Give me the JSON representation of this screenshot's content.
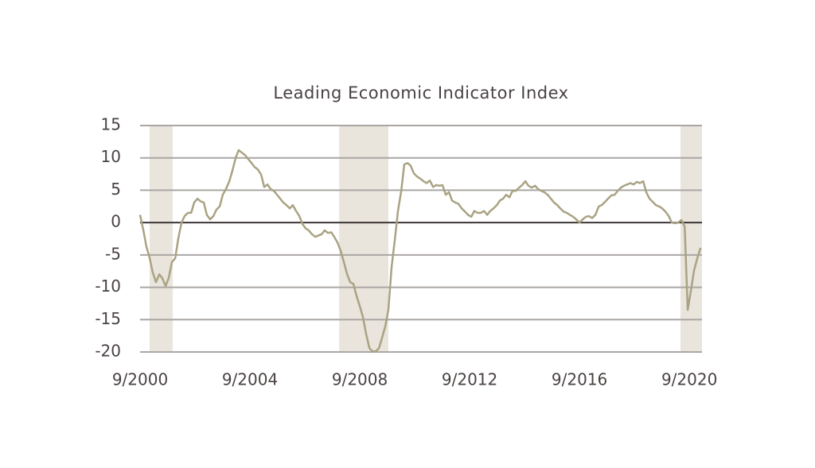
{
  "chart_data": {
    "type": "line",
    "title": "Leading Economic Indicator Index",
    "color": "#a9a383",
    "grid": true,
    "shade_color": "#e9e4dc",
    "shaded_periods": [
      {
        "start": 2001.02,
        "end": 2001.86
      },
      {
        "start": 2007.92,
        "end": 2009.71
      },
      {
        "start": 2020.35,
        "end": 2021.13
      }
    ],
    "xlim": [
      2000.67,
      2021.13
    ],
    "xticks": [
      {
        "value": 2000.67,
        "label": "9/2000"
      },
      {
        "value": 2004.67,
        "label": "9/2004"
      },
      {
        "value": 2008.67,
        "label": "9/2008"
      },
      {
        "value": 2012.67,
        "label": "9/2012"
      },
      {
        "value": 2016.67,
        "label": "9/2016"
      },
      {
        "value": 2020.67,
        "label": "9/2020"
      }
    ],
    "ylim": [
      -20,
      15
    ],
    "yticks": [
      15,
      10,
      5,
      0,
      -5,
      -10,
      -15,
      -20
    ],
    "x": [
      2000.67,
      2000.79,
      2000.9,
      2001.02,
      2001.13,
      2001.25,
      2001.37,
      2001.48,
      2001.6,
      2001.71,
      2001.83,
      2001.95,
      2002.06,
      2002.18,
      2002.29,
      2002.41,
      2002.53,
      2002.64,
      2002.76,
      2002.87,
      2002.99,
      2003.1,
      2003.22,
      2003.34,
      2003.45,
      2003.57,
      2003.68,
      2003.8,
      2003.92,
      2004.03,
      2004.15,
      2004.26,
      2004.38,
      2004.5,
      2004.61,
      2004.73,
      2004.84,
      2004.96,
      2005.08,
      2005.19,
      2005.31,
      2005.42,
      2005.54,
      2005.66,
      2005.77,
      2005.89,
      2006.0,
      2006.12,
      2006.23,
      2006.35,
      2006.47,
      2006.58,
      2006.7,
      2006.81,
      2006.93,
      2007.05,
      2007.16,
      2007.28,
      2007.39,
      2007.51,
      2007.63,
      2007.74,
      2007.86,
      2007.97,
      2008.09,
      2008.21,
      2008.32,
      2008.44,
      2008.55,
      2008.67,
      2008.79,
      2008.9,
      2009.02,
      2009.13,
      2009.25,
      2009.37,
      2009.48,
      2009.6,
      2009.71,
      2009.83,
      2009.95,
      2010.06,
      2010.18,
      2010.29,
      2010.41,
      2010.52,
      2010.64,
      2010.76,
      2010.87,
      2010.99,
      2011.1,
      2011.22,
      2011.34,
      2011.45,
      2011.57,
      2011.68,
      2011.8,
      2011.92,
      2012.03,
      2012.15,
      2012.26,
      2012.38,
      2012.5,
      2012.61,
      2012.73,
      2012.84,
      2012.96,
      2013.08,
      2013.19,
      2013.31,
      2013.42,
      2013.54,
      2013.66,
      2013.77,
      2013.89,
      2014.0,
      2014.12,
      2014.23,
      2014.35,
      2014.47,
      2014.58,
      2014.7,
      2014.81,
      2014.93,
      2015.05,
      2015.16,
      2015.28,
      2015.39,
      2015.51,
      2015.63,
      2015.74,
      2015.86,
      2015.97,
      2016.09,
      2016.21,
      2016.32,
      2016.44,
      2016.55,
      2016.67,
      2016.79,
      2016.9,
      2017.02,
      2017.13,
      2017.25,
      2017.37,
      2017.48,
      2017.6,
      2017.71,
      2017.83,
      2017.95,
      2018.06,
      2018.18,
      2018.29,
      2018.41,
      2018.52,
      2018.64,
      2018.76,
      2018.87,
      2018.99,
      2019.1,
      2019.22,
      2019.34,
      2019.45,
      2019.57,
      2019.68,
      2019.8,
      2019.92,
      2020.03,
      2020.15,
      2020.26,
      2020.38,
      2020.5,
      2020.61,
      2020.73,
      2020.84,
      2020.96,
      2021.08
    ],
    "values": [
      1.2,
      -1.2,
      -3.7,
      -5.5,
      -7.7,
      -9.2,
      -8,
      -8.6,
      -9.8,
      -8.6,
      -6.1,
      -5.5,
      -2.5,
      0,
      1,
      1.5,
      1.5,
      3.1,
      3.7,
      3.3,
      3.1,
      1.2,
      0.5,
      1,
      2,
      2.5,
      4.3,
      5.2,
      6.4,
      8,
      10,
      11.2,
      10.8,
      10.4,
      9.8,
      9.2,
      8.6,
      8.2,
      7.4,
      5.5,
      5.9,
      5.2,
      4.9,
      4.3,
      3.7,
      3.1,
      2.7,
      2.2,
      2.7,
      1.8,
      1,
      -0.2,
      -0.9,
      -1.2,
      -1.8,
      -2.2,
      -2,
      -1.8,
      -1.2,
      -1.6,
      -1.5,
      -2.2,
      -3.1,
      -4.3,
      -6.1,
      -8,
      -9.2,
      -9.5,
      -11.3,
      -12.9,
      -14.7,
      -17.2,
      -19.4,
      -19.9,
      -19.9,
      -19.4,
      -17.8,
      -16,
      -13.5,
      -6.8,
      -2.5,
      1.8,
      4.9,
      9,
      9.2,
      8.8,
      7.6,
      7.1,
      6.8,
      6.4,
      6.1,
      6.5,
      5.5,
      5.8,
      5.7,
      5.8,
      4.3,
      4.7,
      3.4,
      3.1,
      2.9,
      2.2,
      1.7,
      1.2,
      0.9,
      1.8,
      1.5,
      1.5,
      1.8,
      1.2,
      1.8,
      2.2,
      2.7,
      3.4,
      3.7,
      4.3,
      3.9,
      4.9,
      4.9,
      5.4,
      5.8,
      6.4,
      5.7,
      5.4,
      5.7,
      5.2,
      4.9,
      4.7,
      4.3,
      3.7,
      3.1,
      2.7,
      2.2,
      1.7,
      1.5,
      1.2,
      0.9,
      0.5,
      0,
      0.5,
      0.9,
      1,
      0.7,
      1.2,
      2.5,
      2.7,
      3.2,
      3.7,
      4.2,
      4.3,
      4.9,
      5.4,
      5.7,
      5.9,
      6.1,
      5.9,
      6.3,
      6.1,
      6.4,
      4.7,
      3.7,
      3.2,
      2.7,
      2.5,
      2.2,
      1.7,
      1,
      0,
      -0.1,
      0,
      0.4,
      -0.6,
      -13.5,
      -10.4,
      -7.4,
      -5.5,
      -3.9
    ]
  }
}
